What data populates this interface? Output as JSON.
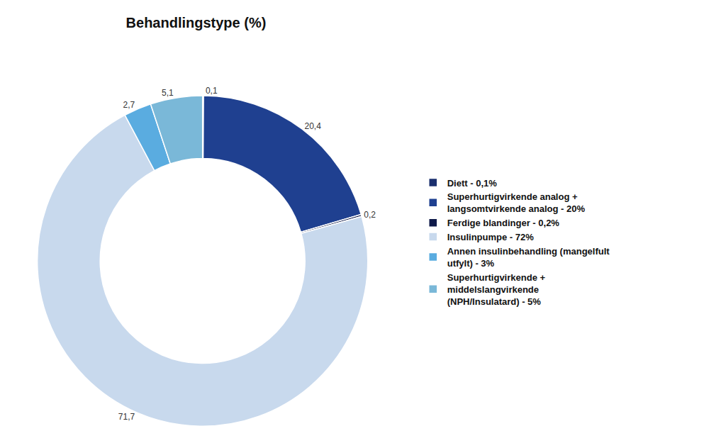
{
  "chart_data": {
    "type": "pie",
    "title": "Behandlingstype (%)",
    "categories": [
      "Diett - 0,1%",
      "Superhurtigvirkende analog +\nlangsomtvirkende analog - 20%",
      "Ferdige blandinger - 0,2%",
      "Insulinpumpe - 72%",
      "Annen insulinbehandling (mangelfult\nutfylt) - 3%",
      "Superhurtigvirkende +\nmiddelslangvirkende\n(NPH/Insulatard) - 5%"
    ],
    "values": [
      0.1,
      20.4,
      0.2,
      71.7,
      2.7,
      5.1
    ],
    "value_labels": [
      "0,1",
      "20,4",
      "0,2",
      "71,7",
      "2,7",
      "5,1"
    ],
    "colors": [
      "#1a2f6e",
      "#1f4090",
      "#0f1a4a",
      "#c8d9ed",
      "#5aace0",
      "#7ab8d8"
    ],
    "data_labels": true,
    "legend": "right"
  }
}
